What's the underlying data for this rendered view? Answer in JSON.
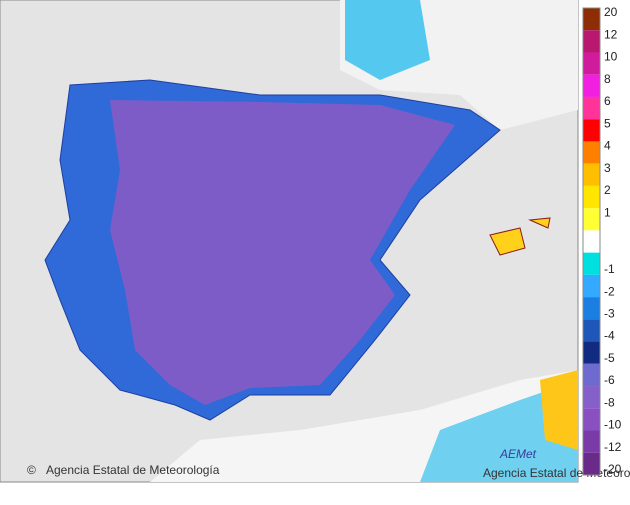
{
  "map": {
    "credit": "Agencia Estatal de Meteorología",
    "logo": "AEMet",
    "logo_subtitle": "Agencia Estatal de Meteorología"
  },
  "legend": {
    "gap_color": "#ffffff",
    "bands": [
      {
        "label": 20,
        "color": "#8c2d04"
      },
      {
        "label": 12,
        "color": "#b8186e"
      },
      {
        "label": 10,
        "color": "#d01c9c"
      },
      {
        "label": 8,
        "color": "#f21ee0"
      },
      {
        "label": 6,
        "color": "#ff3399"
      },
      {
        "label": 5,
        "color": "#ff0000"
      },
      {
        "label": 4,
        "color": "#ff8000"
      },
      {
        "label": 3,
        "color": "#ffbf00"
      },
      {
        "label": 2,
        "color": "#ffe600"
      },
      {
        "label": 1,
        "color": "#ffff33"
      },
      {
        "label": -1,
        "color": "#00e0e0"
      },
      {
        "label": -2,
        "color": "#33aaff"
      },
      {
        "label": -3,
        "color": "#1a7fe0"
      },
      {
        "label": -4,
        "color": "#1f57b8"
      },
      {
        "label": -5,
        "color": "#122a80"
      },
      {
        "label": -6,
        "color": "#6e6ad0"
      },
      {
        "label": -8,
        "color": "#8560c8"
      },
      {
        "label": -10,
        "color": "#8a4fc0"
      },
      {
        "label": -12,
        "color": "#7a3aa8"
      },
      {
        "label": -20,
        "color": "#6a2a8a"
      }
    ]
  }
}
